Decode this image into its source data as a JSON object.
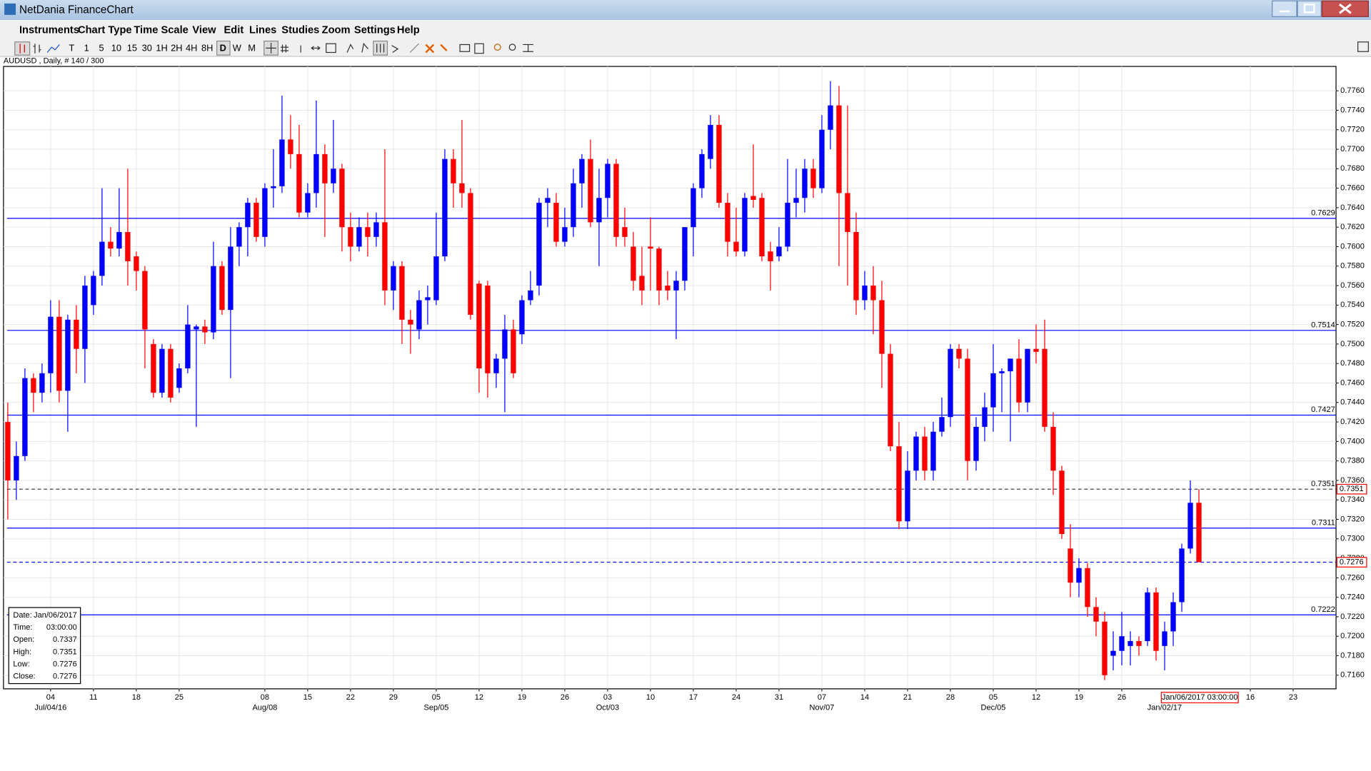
{
  "window": {
    "title": "NetDania FinanceChart"
  },
  "menu": [
    "Instruments",
    "Chart Type",
    "Time Scale",
    "View",
    "Edit",
    "Lines",
    "Studies",
    "Zoom",
    "Settings",
    "Help"
  ],
  "toolbar": {
    "timeframes": [
      "T",
      "1",
      "5",
      "10",
      "15",
      "30",
      "1H",
      "2H",
      "4H",
      "8H",
      "D",
      "W",
      "M"
    ],
    "selected": "D"
  },
  "chart_data": {
    "type": "candlestick",
    "title": "AUDUSD , Daily, # 140 / 300",
    "up_color": "#0000ff",
    "down_color": "#ff0000",
    "level_color": "#0000ff",
    "grid": true,
    "xlim": [
      -0.5,
      155
    ],
    "ylim": [
      0.7146,
      0.7785
    ],
    "yticks": [
      {
        "value": 0.716,
        "label": "0.7160"
      },
      {
        "value": 0.718,
        "label": "0.7180"
      },
      {
        "value": 0.72,
        "label": "0.7200"
      },
      {
        "value": 0.722,
        "label": "0.7220"
      },
      {
        "value": 0.724,
        "label": "0.7240"
      },
      {
        "value": 0.726,
        "label": "0.7260"
      },
      {
        "value": 0.728,
        "label": "0.7280"
      },
      {
        "value": 0.73,
        "label": "0.7300"
      },
      {
        "value": 0.732,
        "label": "0.7320"
      },
      {
        "value": 0.734,
        "label": "0.7340"
      },
      {
        "value": 0.736,
        "label": "0.7360"
      },
      {
        "value": 0.738,
        "label": "0.7380"
      },
      {
        "value": 0.74,
        "label": "0.7400"
      },
      {
        "value": 0.742,
        "label": "0.7420"
      },
      {
        "value": 0.744,
        "label": "0.7440"
      },
      {
        "value": 0.746,
        "label": "0.7460"
      },
      {
        "value": 0.748,
        "label": "0.7480"
      },
      {
        "value": 0.75,
        "label": "0.7500"
      },
      {
        "value": 0.752,
        "label": "0.7520"
      },
      {
        "value": 0.754,
        "label": "0.7540"
      },
      {
        "value": 0.756,
        "label": "0.7560"
      },
      {
        "value": 0.758,
        "label": "0.7580"
      },
      {
        "value": 0.76,
        "label": "0.7600"
      },
      {
        "value": 0.762,
        "label": "0.7620"
      },
      {
        "value": 0.764,
        "label": "0.7640"
      },
      {
        "value": 0.766,
        "label": "0.7660"
      },
      {
        "value": 0.768,
        "label": "0.7680"
      },
      {
        "value": 0.77,
        "label": "0.7700"
      },
      {
        "value": 0.772,
        "label": "0.7720"
      },
      {
        "value": 0.774,
        "label": "0.7740"
      },
      {
        "value": 0.776,
        "label": "0.7760"
      }
    ],
    "xticks": [
      {
        "value": 5,
        "label": "04"
      },
      {
        "value": 10,
        "label": "11"
      },
      {
        "value": 15,
        "label": "18"
      },
      {
        "value": 20,
        "label": "25"
      },
      {
        "value": 30,
        "label": "08"
      },
      {
        "value": 35,
        "label": "15"
      },
      {
        "value": 40,
        "label": "22"
      },
      {
        "value": 45,
        "label": "29"
      },
      {
        "value": 50,
        "label": "05"
      },
      {
        "value": 55,
        "label": "12"
      },
      {
        "value": 60,
        "label": "19"
      },
      {
        "value": 65,
        "label": "26"
      },
      {
        "value": 70,
        "label": "03"
      },
      {
        "value": 75,
        "label": "10"
      },
      {
        "value": 80,
        "label": "17"
      },
      {
        "value": 85,
        "label": "24"
      },
      {
        "value": 90,
        "label": "31"
      },
      {
        "value": 95,
        "label": "07"
      },
      {
        "value": 100,
        "label": "14"
      },
      {
        "value": 105,
        "label": "21"
      },
      {
        "value": 110,
        "label": "28"
      },
      {
        "value": 115,
        "label": "05"
      },
      {
        "value": 120,
        "label": "12"
      },
      {
        "value": 125,
        "label": "19"
      },
      {
        "value": 130,
        "label": "26"
      },
      {
        "value": 145,
        "label": "16"
      },
      {
        "value": 150,
        "label": "23"
      }
    ],
    "xticks_major": [
      {
        "value": 5,
        "label": "Jul/04/16"
      },
      {
        "value": 30,
        "label": "Aug/08"
      },
      {
        "value": 50,
        "label": "Sep/05"
      },
      {
        "value": 70,
        "label": "Oct/03"
      },
      {
        "value": 95,
        "label": "Nov/07"
      },
      {
        "value": 115,
        "label": "Dec/05"
      },
      {
        "value": 135,
        "label": "Jan/02/17"
      }
    ],
    "levels": [
      0.7629,
      0.7514,
      0.7427,
      0.7311,
      0.7222
    ],
    "crosshair_price": 0.7351,
    "last_price": 0.7276,
    "cursor_label": "Jan/06/2017 03:00:00",
    "info_box": [
      [
        "Date:",
        "Jan/06/2017"
      ],
      [
        "Time:",
        "03:00:00"
      ],
      [
        "Open:",
        "0.7337"
      ],
      [
        "High:",
        "0.7351"
      ],
      [
        "Low:",
        "0.7276"
      ],
      [
        "Close:",
        "0.7276"
      ]
    ],
    "ohlc": [
      [
        0.742,
        0.744,
        0.732,
        0.736
      ],
      [
        0.736,
        0.74,
        0.734,
        0.7385
      ],
      [
        0.7385,
        0.7475,
        0.738,
        0.7465
      ],
      [
        0.7465,
        0.747,
        0.743,
        0.745
      ],
      [
        0.745,
        0.748,
        0.744,
        0.747
      ],
      [
        0.747,
        0.7545,
        0.745,
        0.7528
      ],
      [
        0.7528,
        0.7545,
        0.744,
        0.7452
      ],
      [
        0.7452,
        0.753,
        0.741,
        0.7525
      ],
      [
        0.7525,
        0.754,
        0.747,
        0.7495
      ],
      [
        0.7495,
        0.757,
        0.746,
        0.756
      ],
      [
        0.754,
        0.7575,
        0.753,
        0.757
      ],
      [
        0.757,
        0.766,
        0.756,
        0.7605
      ],
      [
        0.7605,
        0.762,
        0.759,
        0.7598
      ],
      [
        0.7598,
        0.766,
        0.759,
        0.7615
      ],
      [
        0.7615,
        0.768,
        0.756,
        0.7585
      ],
      [
        0.759,
        0.7595,
        0.7555,
        0.7575
      ],
      [
        0.7575,
        0.758,
        0.7475,
        0.7515
      ],
      [
        0.75,
        0.7505,
        0.7445,
        0.745
      ],
      [
        0.745,
        0.75,
        0.7445,
        0.7495
      ],
      [
        0.7495,
        0.75,
        0.744,
        0.7445
      ],
      [
        0.7455,
        0.748,
        0.745,
        0.7475
      ],
      [
        0.7475,
        0.754,
        0.747,
        0.752
      ],
      [
        0.7515,
        0.752,
        0.7415,
        0.7518
      ],
      [
        0.7518,
        0.7525,
        0.75,
        0.7512
      ],
      [
        0.7512,
        0.7605,
        0.7505,
        0.758
      ],
      [
        0.758,
        0.7585,
        0.753,
        0.7535
      ],
      [
        0.7535,
        0.762,
        0.7465,
        0.76
      ],
      [
        0.76,
        0.7625,
        0.758,
        0.762
      ],
      [
        0.762,
        0.765,
        0.759,
        0.7645
      ],
      [
        0.7645,
        0.765,
        0.7605,
        0.761
      ],
      [
        0.761,
        0.7665,
        0.76,
        0.766
      ],
      [
        0.766,
        0.77,
        0.764,
        0.7662
      ],
      [
        0.7662,
        0.7755,
        0.7655,
        0.771
      ],
      [
        0.771,
        0.7735,
        0.768,
        0.7695
      ],
      [
        0.7695,
        0.7725,
        0.763,
        0.7635
      ],
      [
        0.7635,
        0.7665,
        0.763,
        0.7655
      ],
      [
        0.7655,
        0.775,
        0.764,
        0.7695
      ],
      [
        0.7695,
        0.7705,
        0.761,
        0.7665
      ],
      [
        0.7665,
        0.773,
        0.7655,
        0.768
      ],
      [
        0.768,
        0.7685,
        0.7595,
        0.762
      ],
      [
        0.762,
        0.7635,
        0.7585,
        0.76
      ],
      [
        0.76,
        0.763,
        0.7595,
        0.762
      ],
      [
        0.762,
        0.7635,
        0.759,
        0.761
      ],
      [
        0.761,
        0.7635,
        0.76,
        0.7625
      ],
      [
        0.7625,
        0.77,
        0.754,
        0.7555
      ],
      [
        0.7555,
        0.7585,
        0.7535,
        0.758
      ],
      [
        0.758,
        0.7585,
        0.75,
        0.7525
      ],
      [
        0.7525,
        0.7535,
        0.749,
        0.752
      ],
      [
        0.7515,
        0.7555,
        0.7505,
        0.7545
      ],
      [
        0.7545,
        0.756,
        0.752,
        0.7548
      ],
      [
        0.7545,
        0.7635,
        0.754,
        0.759
      ],
      [
        0.759,
        0.77,
        0.7585,
        0.769
      ],
      [
        0.769,
        0.77,
        0.764,
        0.7665
      ],
      [
        0.7665,
        0.773,
        0.764,
        0.7655
      ],
      [
        0.7655,
        0.766,
        0.7525,
        0.753
      ],
      [
        0.7562,
        0.7565,
        0.745,
        0.7475
      ],
      [
        0.756,
        0.7565,
        0.7445,
        0.747
      ],
      [
        0.747,
        0.749,
        0.7455,
        0.7485
      ],
      [
        0.7485,
        0.753,
        0.743,
        0.7515
      ],
      [
        0.7515,
        0.7525,
        0.7465,
        0.747
      ],
      [
        0.751,
        0.755,
        0.75,
        0.7545
      ],
      [
        0.7545,
        0.7575,
        0.754,
        0.7555
      ],
      [
        0.756,
        0.765,
        0.755,
        0.7645
      ],
      [
        0.7645,
        0.766,
        0.762,
        0.765
      ],
      [
        0.7645,
        0.7655,
        0.76,
        0.7605
      ],
      [
        0.7605,
        0.764,
        0.76,
        0.762
      ],
      [
        0.762,
        0.768,
        0.761,
        0.7665
      ],
      [
        0.7665,
        0.7695,
        0.764,
        0.769
      ],
      [
        0.769,
        0.771,
        0.762,
        0.7625
      ],
      [
        0.7625,
        0.768,
        0.758,
        0.765
      ],
      [
        0.765,
        0.769,
        0.763,
        0.7685
      ],
      [
        0.7685,
        0.769,
        0.76,
        0.761
      ],
      [
        0.762,
        0.764,
        0.76,
        0.761
      ],
      [
        0.76,
        0.7615,
        0.7555,
        0.7565
      ],
      [
        0.757,
        0.76,
        0.754,
        0.7555
      ],
      [
        0.76,
        0.763,
        0.7555,
        0.7598
      ],
      [
        0.7598,
        0.76,
        0.754,
        0.7555
      ],
      [
        0.756,
        0.7575,
        0.7545,
        0.7555
      ],
      [
        0.7555,
        0.7575,
        0.7505,
        0.7565
      ],
      [
        0.7565,
        0.762,
        0.7555,
        0.762
      ],
      [
        0.762,
        0.7665,
        0.759,
        0.766
      ],
      [
        0.766,
        0.77,
        0.765,
        0.7695
      ],
      [
        0.769,
        0.7735,
        0.768,
        0.7725
      ],
      [
        0.7725,
        0.7735,
        0.764,
        0.7645
      ],
      [
        0.7645,
        0.7655,
        0.759,
        0.7605
      ],
      [
        0.7605,
        0.764,
        0.759,
        0.7595
      ],
      [
        0.7595,
        0.7655,
        0.759,
        0.765
      ],
      [
        0.7652,
        0.7705,
        0.764,
        0.7648
      ],
      [
        0.765,
        0.7655,
        0.7585,
        0.759
      ],
      [
        0.7595,
        0.7605,
        0.7555,
        0.7585
      ],
      [
        0.759,
        0.762,
        0.7585,
        0.76
      ],
      [
        0.76,
        0.769,
        0.7595,
        0.7645
      ],
      [
        0.7645,
        0.768,
        0.763,
        0.765
      ],
      [
        0.765,
        0.769,
        0.7635,
        0.768
      ],
      [
        0.768,
        0.769,
        0.765,
        0.766
      ],
      [
        0.766,
        0.7735,
        0.7655,
        0.772
      ],
      [
        0.772,
        0.777,
        0.77,
        0.7745
      ],
      [
        0.7745,
        0.7765,
        0.758,
        0.7655
      ],
      [
        0.7655,
        0.7745,
        0.756,
        0.7615
      ],
      [
        0.7615,
        0.7635,
        0.753,
        0.7545
      ],
      [
        0.7545,
        0.7575,
        0.7535,
        0.756
      ],
      [
        0.756,
        0.758,
        0.751,
        0.7545
      ],
      [
        0.7545,
        0.7565,
        0.7455,
        0.749
      ],
      [
        0.749,
        0.75,
        0.739,
        0.7395
      ],
      [
        0.7395,
        0.742,
        0.731,
        0.7318
      ],
      [
        0.7318,
        0.739,
        0.731,
        0.737
      ],
      [
        0.737,
        0.741,
        0.736,
        0.7405
      ],
      [
        0.7405,
        0.7415,
        0.736,
        0.737
      ],
      [
        0.737,
        0.742,
        0.736,
        0.741
      ],
      [
        0.741,
        0.7445,
        0.7405,
        0.7425
      ],
      [
        0.7425,
        0.75,
        0.7415,
        0.7495
      ],
      [
        0.7495,
        0.75,
        0.7475,
        0.7485
      ],
      [
        0.7485,
        0.7495,
        0.736,
        0.738
      ],
      [
        0.738,
        0.7425,
        0.737,
        0.7415
      ],
      [
        0.7415,
        0.745,
        0.74,
        0.7435
      ],
      [
        0.7435,
        0.75,
        0.741,
        0.747
      ],
      [
        0.747,
        0.7475,
        0.743,
        0.7472
      ],
      [
        0.7472,
        0.7485,
        0.74,
        0.7485
      ],
      [
        0.7485,
        0.7505,
        0.743,
        0.744
      ],
      [
        0.744,
        0.7495,
        0.743,
        0.7495
      ],
      [
        0.7495,
        0.752,
        0.748,
        0.7492
      ],
      [
        0.7495,
        0.7525,
        0.741,
        0.7415
      ],
      [
        0.7415,
        0.743,
        0.7345,
        0.737
      ],
      [
        0.737,
        0.7375,
        0.73,
        0.7305
      ],
      [
        0.729,
        0.7315,
        0.724,
        0.7255
      ],
      [
        0.7255,
        0.728,
        0.724,
        0.727
      ],
      [
        0.727,
        0.7275,
        0.722,
        0.723
      ],
      [
        0.723,
        0.724,
        0.72,
        0.7215
      ],
      [
        0.7215,
        0.7225,
        0.7155,
        0.716
      ],
      [
        0.718,
        0.7205,
        0.7165,
        0.7185
      ],
      [
        0.7185,
        0.7225,
        0.717,
        0.72
      ],
      [
        0.719,
        0.7205,
        0.717,
        0.7195
      ],
      [
        0.7195,
        0.72,
        0.718,
        0.719
      ],
      [
        0.7195,
        0.725,
        0.719,
        0.7245
      ],
      [
        0.7245,
        0.725,
        0.7175,
        0.7185
      ],
      [
        0.719,
        0.7215,
        0.7165,
        0.7205
      ],
      [
        0.7205,
        0.7245,
        0.719,
        0.7235
      ],
      [
        0.7235,
        0.7295,
        0.7225,
        0.729
      ],
      [
        0.729,
        0.736,
        0.7285,
        0.7337
      ],
      [
        0.7337,
        0.7351,
        0.7276,
        0.7276
      ]
    ]
  }
}
